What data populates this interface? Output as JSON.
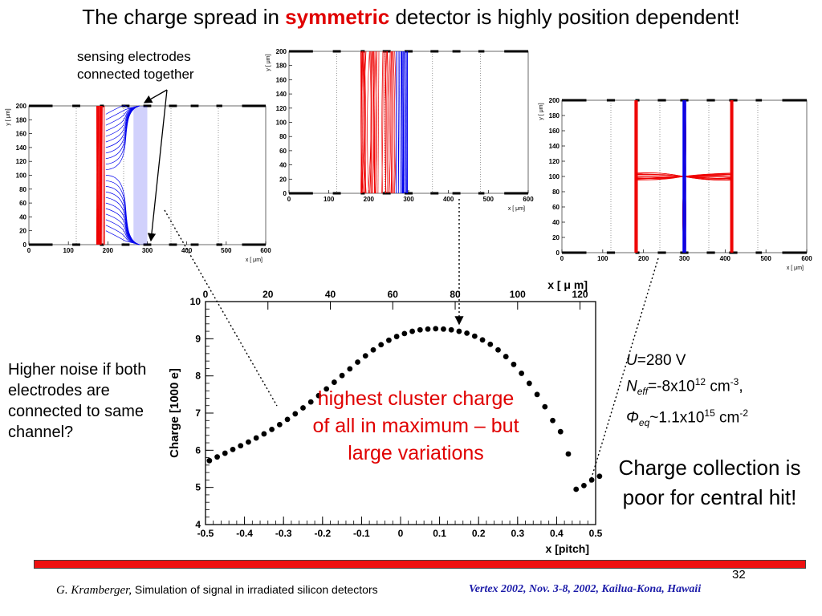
{
  "slide": {
    "title_pre": "The charge spread in ",
    "title_highlight": "symmetric",
    "title_post": " detector is highly position dependent!",
    "sensing_line1": "sensing electrodes",
    "sensing_line2": "connected together",
    "noise_text": "Higher noise if both electrodes are connected to same channel?",
    "highest_text": "highest cluster charge of all in maximum – but large variations",
    "collection_text": "Charge collection is poor for central hit!",
    "params": {
      "u_symbol": "U",
      "u_value": "=280 V",
      "n_symbol": "N",
      "n_sub": "eff",
      "n_value": "=-8x10",
      "n_exp": "12",
      "n_unit": " cm",
      "n_unit_exp": "-3",
      "n_tail": ",",
      "phi_symbol": "Φ",
      "phi_sub": "eq",
      "phi_value": "~1.1x10",
      "phi_exp": "15",
      "phi_unit": " cm",
      "phi_unit_exp": "-2"
    },
    "page_number": "32",
    "footer_author": "G. Kramberger,",
    "footer_title": " Simulation of signal in irradiated silicon detectors",
    "footer_conf": "Vertex 2002, Nov.  3-8, 2002, Kailua-Kona, Hawaii",
    "colors": {
      "highlight": "#e00000",
      "drift_holes": "#ee0000",
      "drift_electrons": "#0000ee",
      "footer_conf": "#1a1aa8"
    }
  },
  "chart_data": [
    {
      "type": "scatter",
      "title": "",
      "xlabel": "x [pitch]",
      "x2label": "x [ μ m]",
      "ylabel": "Charge [1000 e]",
      "xlim": [
        -0.5,
        0.5
      ],
      "ylim": [
        4,
        10
      ],
      "x2lim": [
        0,
        125
      ],
      "xticks": [
        "-0.5",
        "-0.4",
        "-0.3",
        "-0.2",
        "-0.1",
        "0",
        "0.1",
        "0.2",
        "0.3",
        "0.4",
        "0.5"
      ],
      "x2ticks": [
        "0",
        "20",
        "40",
        "60",
        "80",
        "100",
        "120"
      ],
      "yticks": [
        "4",
        "5",
        "6",
        "7",
        "8",
        "9",
        "10"
      ],
      "x": [
        -0.49,
        -0.47,
        -0.45,
        -0.43,
        -0.41,
        -0.39,
        -0.37,
        -0.35,
        -0.33,
        -0.31,
        -0.29,
        -0.27,
        -0.25,
        -0.23,
        -0.21,
        -0.19,
        -0.17,
        -0.15,
        -0.13,
        -0.11,
        -0.09,
        -0.07,
        -0.05,
        -0.03,
        -0.01,
        0.01,
        0.03,
        0.05,
        0.07,
        0.09,
        0.11,
        0.13,
        0.15,
        0.17,
        0.19,
        0.21,
        0.23,
        0.25,
        0.27,
        0.29,
        0.31,
        0.33,
        0.35,
        0.37,
        0.39,
        0.41,
        0.43,
        0.45,
        0.47,
        0.49,
        0.51
      ],
      "y": [
        5.72,
        5.82,
        5.92,
        6.02,
        6.12,
        6.22,
        6.33,
        6.44,
        6.56,
        6.69,
        6.83,
        6.98,
        7.14,
        7.3,
        7.47,
        7.65,
        7.83,
        8.01,
        8.19,
        8.37,
        8.54,
        8.7,
        8.84,
        8.96,
        9.06,
        9.14,
        9.2,
        9.24,
        9.26,
        9.27,
        9.26,
        9.24,
        9.2,
        9.15,
        9.07,
        8.97,
        8.85,
        8.7,
        8.52,
        8.31,
        8.07,
        7.8,
        7.5,
        7.17,
        6.8,
        6.5,
        5.9,
        4.95,
        5.05,
        5.2,
        5.3
      ]
    },
    {
      "type": "line",
      "title": "",
      "xlabel": "x [ μm]",
      "ylabel": "y [ μm]",
      "xlim": [
        0,
        600
      ],
      "ylim": [
        0,
        200
      ],
      "xticks": [
        "0",
        "100",
        "200",
        "300",
        "400",
        "500",
        "600"
      ],
      "yticks": [
        "0",
        "20",
        "40",
        "60",
        "80",
        "100",
        "120",
        "140",
        "160",
        "180",
        "200"
      ],
      "series": [
        {
          "name": "",
          "color": "#ee0000",
          "x_range": [
            170,
            195
          ]
        },
        {
          "name": "",
          "color": "#0000ee",
          "x_range": [
            195,
            300
          ]
        }
      ]
    },
    {
      "type": "line",
      "title": "",
      "xlabel": "x [ μm]",
      "ylabel": "y [ μm]",
      "xlim": [
        0,
        600
      ],
      "ylim": [
        0,
        200
      ],
      "xticks": [
        "0",
        "100",
        "200",
        "300",
        "400",
        "500",
        "600"
      ],
      "yticks": [
        "0",
        "20",
        "40",
        "60",
        "80",
        "100",
        "120",
        "140",
        "160",
        "180",
        "200"
      ],
      "series": [
        {
          "name": "",
          "color": "#ee0000",
          "x_range": [
            180,
            270
          ]
        },
        {
          "name": "",
          "color": "#0000ee",
          "x_range": [
            265,
            300
          ]
        }
      ]
    },
    {
      "type": "line",
      "title": "",
      "xlabel": "x [ μm]",
      "ylabel": "y [ μm]",
      "xlim": [
        0,
        600
      ],
      "ylim": [
        0,
        200
      ],
      "xticks": [
        "0",
        "100",
        "200",
        "300",
        "400",
        "500",
        "600"
      ],
      "yticks": [
        "0",
        "20",
        "40",
        "60",
        "80",
        "100",
        "120",
        "140",
        "160",
        "180",
        "200"
      ],
      "series": [
        {
          "name": "",
          "color": "#ee0000",
          "x_range": [
            180,
            420
          ]
        },
        {
          "name": "",
          "color": "#0000ee",
          "x_range": [
            295,
            305
          ]
        }
      ]
    }
  ]
}
